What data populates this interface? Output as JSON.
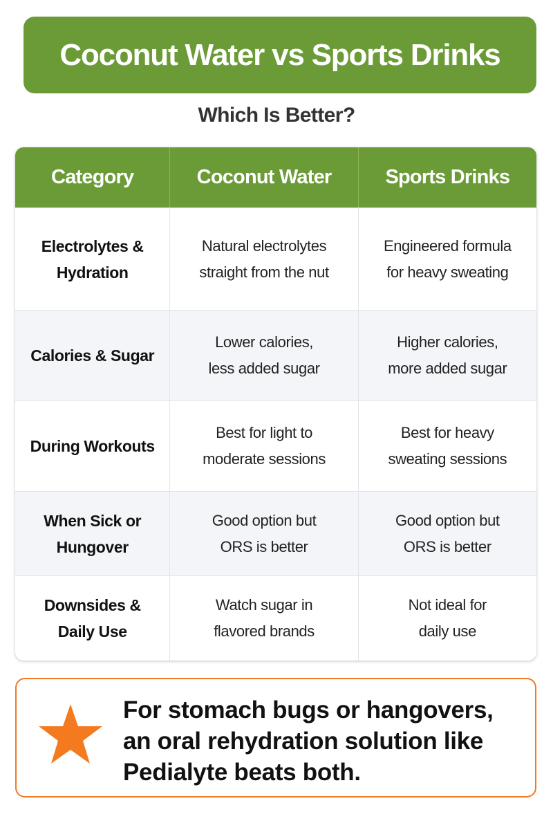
{
  "header": {
    "title": "Coconut Water vs Sports Drinks",
    "subtitle": "Which Is Better?"
  },
  "table": {
    "columns": [
      "Category",
      "Coconut Water",
      "Sports Drinks"
    ],
    "rows": [
      [
        [
          "Electrolytes &",
          "Hydration"
        ],
        [
          "Natural electrolytes",
          "straight from the nut"
        ],
        [
          "Engineered formula",
          "for heavy sweating"
        ]
      ],
      [
        [
          "Calories & Sugar"
        ],
        [
          "Lower calories,",
          "less added sugar"
        ],
        [
          "Higher calories,",
          "more added sugar"
        ]
      ],
      [
        [
          "During Workouts"
        ],
        [
          "Best for light to",
          "moderate sessions"
        ],
        [
          "Best for heavy",
          "sweating sessions"
        ]
      ],
      [
        [
          "When Sick or",
          "Hungover"
        ],
        [
          "Good option but",
          "ORS is better"
        ],
        [
          "Good option but",
          "ORS is better"
        ]
      ],
      [
        [
          "Downsides &",
          "Daily Use"
        ],
        [
          "Watch sugar in",
          "flavored brands"
        ],
        [
          "Not ideal for",
          "daily use"
        ]
      ]
    ]
  },
  "callout": {
    "lines": [
      "For stomach bugs or hangovers,",
      "an oral rehydration solution like",
      "Pedialyte beats both."
    ]
  }
}
